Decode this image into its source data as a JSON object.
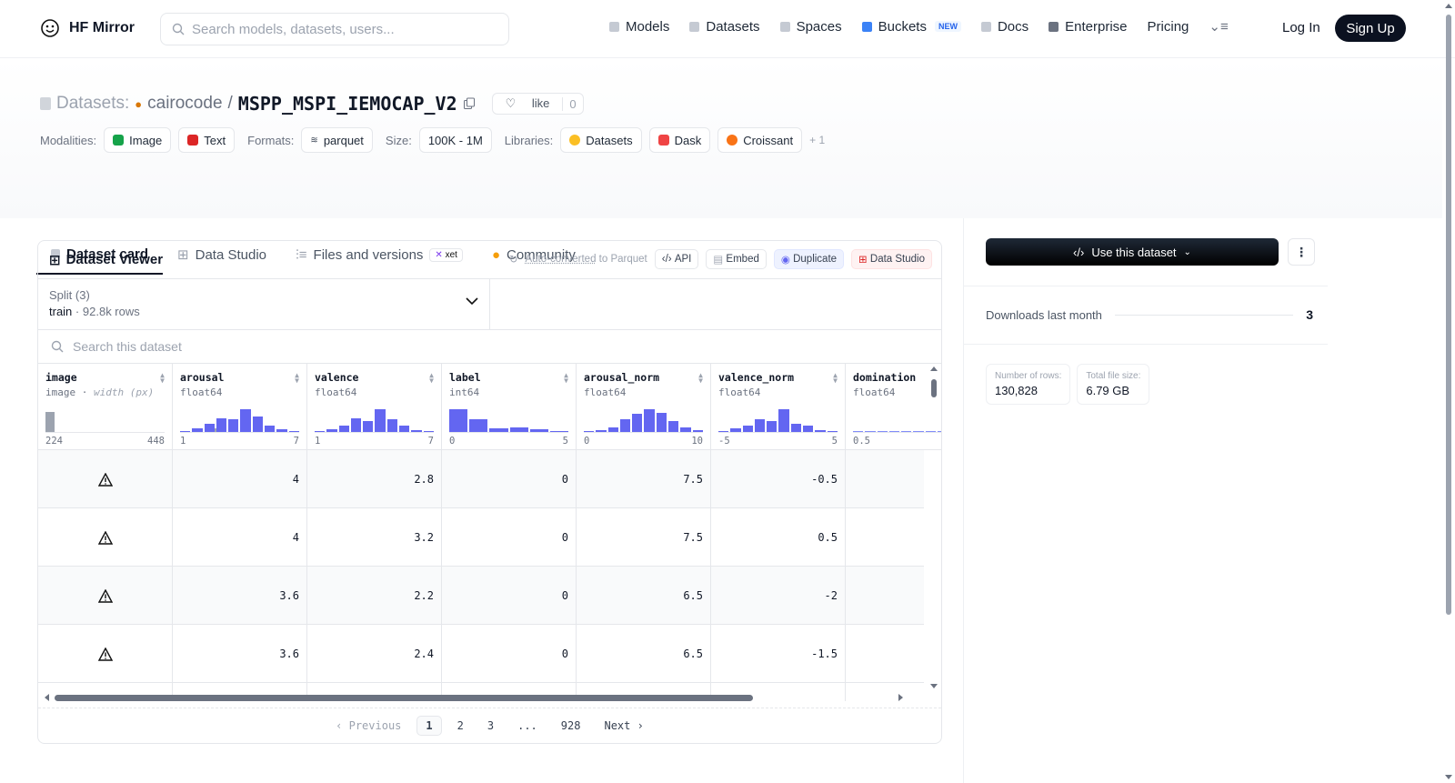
{
  "nav": {
    "brand": "HF Mirror",
    "search_placeholder": "Search models, datasets, users...",
    "links": [
      "Models",
      "Datasets",
      "Spaces",
      "Buckets",
      "Docs",
      "Enterprise",
      "Pricing"
    ],
    "new_badge": "NEW",
    "login": "Log In",
    "signup": "Sign Up"
  },
  "header": {
    "datasets_label": "Datasets:",
    "org": "cairocode",
    "sep": "/",
    "repo": "MSPP_MSPI_IEMOCAP_V2",
    "like_label": "like",
    "like_count": "0",
    "modalities_label": "Modalities:",
    "modalities": [
      "Image",
      "Text"
    ],
    "formats_label": "Formats:",
    "format": "parquet",
    "size_label": "Size:",
    "size": "100K - 1M",
    "libraries_label": "Libraries:",
    "libraries": [
      "Datasets",
      "Dask",
      "Croissant"
    ],
    "more": "+ 1"
  },
  "tabs": {
    "card": "Dataset card",
    "studio": "Data Studio",
    "files": "Files and versions",
    "xet": "xet",
    "community": "Community"
  },
  "viewer": {
    "title": "Dataset Viewer",
    "auto_converted": "Auto-converted",
    "to_parquet": "to Parquet",
    "api": "API",
    "embed": "Embed",
    "duplicate": "Duplicate",
    "data_studio": "Data Studio",
    "split_label": "Split (3)",
    "split_value": "train",
    "split_dot": "·",
    "split_rows": "92.8k rows",
    "search_placeholder": "Search this dataset",
    "columns": [
      {
        "name": "image",
        "type": "image",
        "type_extra": "width (px)",
        "min": "224",
        "max": "448",
        "hist": [
          0.9,
          0,
          0,
          0,
          0,
          0,
          0,
          0,
          0,
          0,
          0,
          0,
          0,
          0,
          0,
          0.15
        ]
      },
      {
        "name": "arousal",
        "type": "float64",
        "min": "1",
        "max": "7",
        "hist": [
          0.05,
          0.15,
          0.35,
          0.6,
          0.55,
          1,
          0.7,
          0.3,
          0.12,
          0.05
        ]
      },
      {
        "name": "valence",
        "type": "float64",
        "min": "1",
        "max": "7",
        "hist": [
          0.05,
          0.12,
          0.3,
          0.6,
          0.5,
          1,
          0.55,
          0.3,
          0.1,
          0.05
        ]
      },
      {
        "name": "label",
        "type": "int64",
        "min": "0",
        "max": "5",
        "hist": [
          1,
          0.55,
          0.18,
          0.2,
          0.12,
          0.05
        ]
      },
      {
        "name": "arousal_norm",
        "type": "float64",
        "min": "0",
        "max": "10",
        "hist": [
          0.05,
          0.1,
          0.22,
          0.55,
          0.8,
          1,
          0.85,
          0.5,
          0.2,
          0.07
        ]
      },
      {
        "name": "valence_norm",
        "type": "float64",
        "min": "-5",
        "max": "5",
        "hist": [
          0.05,
          0.15,
          0.3,
          0.55,
          0.5,
          1,
          0.38,
          0.28,
          0.1,
          0.05
        ]
      },
      {
        "name": "domination",
        "type": "float64",
        "min": "0.5",
        "max": "",
        "hist": [
          0.03,
          0.03,
          0.03,
          0.03,
          0.03,
          0.03,
          0.03,
          0.03
        ]
      }
    ],
    "rows": [
      [
        "4",
        "2.8",
        "0",
        "7.5",
        "-0.5"
      ],
      [
        "4",
        "3.2",
        "0",
        "7.5",
        "0.5"
      ],
      [
        "3.6",
        "2.2",
        "0",
        "6.5",
        "-2"
      ],
      [
        "3.6",
        "2.4",
        "0",
        "6.5",
        "-1.5"
      ]
    ],
    "pager": {
      "prev": "Previous",
      "pages": [
        "1",
        "2",
        "3",
        "...",
        "928"
      ],
      "next": "Next"
    }
  },
  "sidebar": {
    "use_label": "Use this dataset",
    "downloads_label": "Downloads last month",
    "downloads_value": "3",
    "rows_label": "Number of rows:",
    "rows_value": "130,828",
    "filesize_label": "Total file size:",
    "filesize_value": "6.79 GB"
  },
  "colors": {
    "accent": "#6366f1",
    "dark": "#0b1120",
    "border": "#e5e7eb"
  }
}
